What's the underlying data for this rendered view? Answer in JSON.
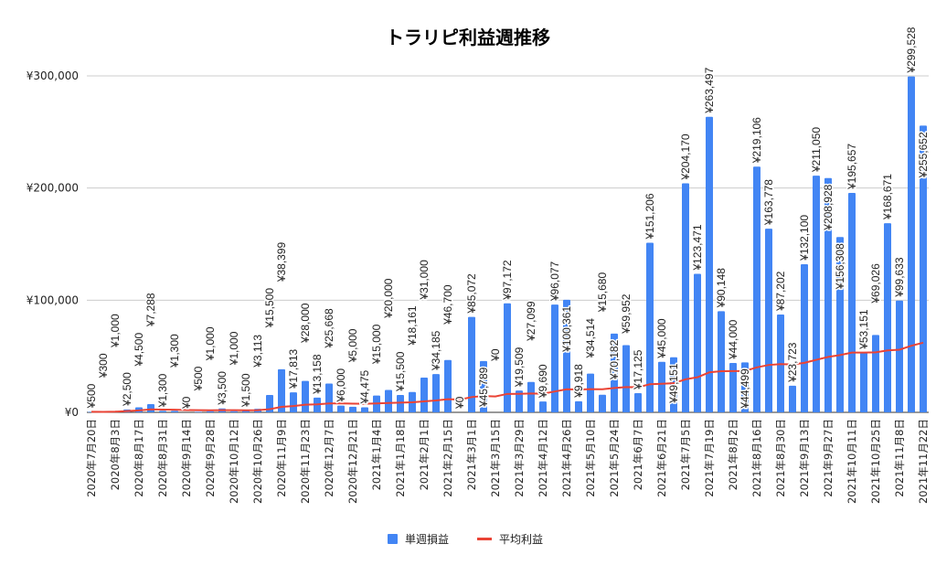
{
  "chart_data": {
    "type": "bar",
    "title": "トラリピ利益週推移",
    "xlabel": "",
    "ylabel": "",
    "ylim": [
      0,
      300000
    ],
    "yticks": [
      "¥0",
      "¥100,000",
      "¥200,000",
      "¥300,000"
    ],
    "ytick_values": [
      0,
      100000,
      200000,
      300000
    ],
    "grid": true,
    "legend_position": "bottom",
    "colors": {
      "bars": "#4285f4",
      "line": "#ea4335"
    },
    "xtick_labels": [
      "2020年7月20日",
      "2020年8月3日",
      "2020年8月17日",
      "2020年8月31日",
      "2020年9月14日",
      "2020年9月28日",
      "2020年10月12日",
      "2020年10月26日",
      "2020年11月9日",
      "2020年11月23日",
      "2020年12月7日",
      "2020年12月21日",
      "2021年1月4日",
      "2021年1月18日",
      "2021年2月1日",
      "2021年2月15日",
      "2021年3月1日",
      "2021年3月15日",
      "2021年3月29日",
      "2021年4月12日",
      "2021年4月26日",
      "2021年5月10日",
      "2021年5月24日",
      "2021年6月7日",
      "2021年6月21日",
      "2021年7月5日",
      "2021年7月19日",
      "2021年8月2日",
      "2021年8月16日",
      "2021年8月30日",
      "2021年9月13日",
      "2021年9月27日",
      "2021年10月11日",
      "2021年10月25日",
      "2021年11月8日",
      "2021年11月22日"
    ],
    "series": [
      {
        "name": "単週損益",
        "type": "bar",
        "values": [
          500,
          300,
          1000,
          2500,
          4500,
          7288,
          1300,
          1300,
          0,
          500,
          1000,
          3500,
          1000,
          1500,
          3113,
          15500,
          38399,
          17813,
          28000,
          13158,
          25668,
          6000,
          5000,
          4475,
          15000,
          20000,
          15500,
          18161,
          31000,
          34185,
          46700,
          0,
          85072,
          45789,
          0,
          97172,
          19509,
          27099,
          9690,
          96077,
          100361,
          9918,
          34514,
          15680,
          70182,
          59952,
          17125,
          151206,
          45000,
          49151,
          204170,
          123471,
          263497,
          90148,
          44000,
          44499,
          219106,
          163778,
          87202,
          23723,
          132100,
          211050,
          208928,
          156308,
          195657,
          53151,
          69026,
          168671,
          99633,
          299528,
          255652
        ]
      },
      {
        "name": "平均利益",
        "type": "line",
        "values": [
          500,
          400,
          600,
          1075,
          1760,
          2681,
          2484,
          2336,
          2076,
          1919,
          1835,
          1974,
          1899,
          1871,
          1953,
          2800,
          4894,
          5612,
          6790,
          7109,
          7992,
          7902,
          7776,
          7638,
          7933,
          8397,
          8660,
          8999,
          9758,
          10572,
          11737,
          11371,
          13604,
          14551,
          14135,
          16441,
          16524,
          16803,
          16620,
          18607,
          20601,
          20346,
          20676,
          20562,
          21665,
          22497,
          22383,
          25067,
          25474,
          25947,
          29442,
          31250,
          35632,
          36642,
          36775,
          36913,
          40110,
          42242,
          43004,
          42683,
          44148,
          46840,
          49413,
          51083,
          53308,
          53305,
          53540,
          55233,
          55876,
          59357,
          62122
        ]
      }
    ]
  }
}
